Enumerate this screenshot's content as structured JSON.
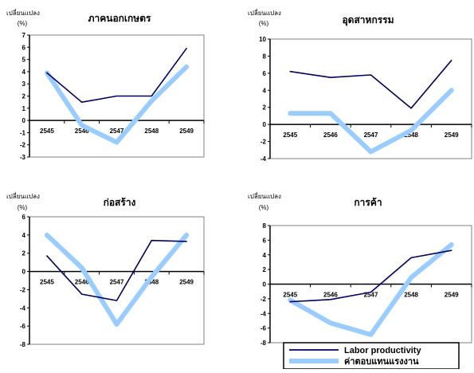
{
  "colors": {
    "labor_productivity": "#000066",
    "compensation": "#99ccff",
    "axis": "#000000",
    "frame": "#808080"
  },
  "chart_data": [
    {
      "type": "line",
      "title": "ภาคนอกเกษตร",
      "ylabel": "เปลี่ยนแปลง",
      "yunit": "(%)",
      "categories": [
        "2545",
        "2546",
        "2547",
        "2548",
        "2549"
      ],
      "ylim": [
        -3,
        7
      ],
      "yticks": [
        7,
        6,
        5,
        4,
        3,
        2,
        1,
        0,
        -1,
        -2,
        -3
      ],
      "series": [
        {
          "key": "labor_productivity",
          "values": [
            3.9,
            1.5,
            2.0,
            2.0,
            5.9
          ]
        },
        {
          "key": "compensation",
          "values": [
            3.9,
            -0.4,
            -1.8,
            1.6,
            4.4
          ]
        }
      ]
    },
    {
      "type": "line",
      "title": "อุดสาหกรรม",
      "ylabel": "เปลี่ยนแปลง",
      "yunit": "(%)",
      "categories": [
        "2545",
        "2546",
        "2547",
        "2548",
        "2549"
      ],
      "ylim": [
        -4,
        10
      ],
      "yticks": [
        10,
        8,
        6,
        4,
        2,
        0,
        -2,
        -4
      ],
      "series": [
        {
          "key": "labor_productivity",
          "values": [
            6.2,
            5.5,
            5.8,
            1.9,
            7.5
          ]
        },
        {
          "key": "compensation",
          "values": [
            1.3,
            1.3,
            -3.2,
            -0.7,
            4.0
          ]
        }
      ]
    },
    {
      "type": "line",
      "title": "ก่อสร้าง",
      "ylabel": "เปลี่ยนแปลง",
      "yunit": "(%)",
      "categories": [
        "2545",
        "2546",
        "2547",
        "2548",
        "2549"
      ],
      "ylim": [
        -8,
        6
      ],
      "yticks": [
        6,
        4,
        2,
        0,
        -2,
        -4,
        -6,
        -8
      ],
      "series": [
        {
          "key": "labor_productivity",
          "values": [
            1.7,
            -2.5,
            -3.2,
            3.4,
            3.3
          ]
        },
        {
          "key": "compensation",
          "values": [
            4.0,
            0.4,
            -5.8,
            -0.6,
            4.0
          ]
        }
      ]
    },
    {
      "type": "line",
      "title": "การค้า",
      "ylabel": "เปลี่ยนแปลง",
      "yunit": "(%)",
      "categories": [
        "2545",
        "2546",
        "2547",
        "2548",
        "2549"
      ],
      "ylim": [
        -8,
        8
      ],
      "yticks": [
        8,
        6,
        4,
        2,
        0,
        -2,
        -4,
        -6,
        -8
      ],
      "series": [
        {
          "key": "labor_productivity",
          "values": [
            -2.4,
            -2.1,
            -1.1,
            3.6,
            4.6
          ]
        },
        {
          "key": "compensation",
          "values": [
            -2.2,
            -5.3,
            -6.9,
            0.9,
            5.4
          ]
        }
      ]
    }
  ],
  "legend": {
    "items": [
      {
        "key": "labor_productivity",
        "label": "Labor productivity"
      },
      {
        "key": "compensation",
        "label": "ค่าตอบแทนแรงงาน"
      }
    ]
  }
}
